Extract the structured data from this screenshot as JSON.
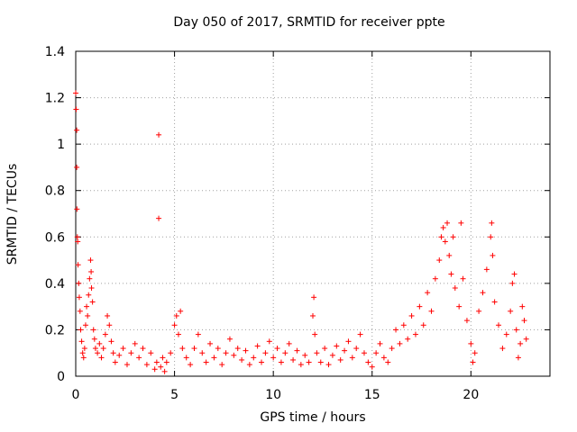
{
  "chart_data": {
    "type": "scatter",
    "title": "Day 050 of 2017, SRMTID for receiver ppte",
    "xlabel": "GPS time / hours",
    "ylabel": "SRMTID / TECUs",
    "xlim": [
      0,
      24
    ],
    "ylim": [
      0,
      1.4
    ],
    "x_ticks": [
      0,
      5,
      10,
      15,
      20
    ],
    "x_tick_labels": [
      "0",
      "5",
      "10",
      "15",
      "20"
    ],
    "y_ticks": [
      0,
      0.2,
      0.4,
      0.6,
      0.8,
      1.0,
      1.2,
      1.4
    ],
    "y_tick_labels": [
      "0",
      "0.2",
      "0.4",
      "0.6",
      "0.8",
      "1",
      "1.2",
      "1.4"
    ],
    "grid": true,
    "marker": "+",
    "color": "#ff0000",
    "series": [
      {
        "name": "SRMTID",
        "points": [
          [
            0.0,
            1.22
          ],
          [
            0.02,
            1.15
          ],
          [
            0.05,
            1.06
          ],
          [
            0.05,
            0.9
          ],
          [
            0.06,
            0.72
          ],
          [
            0.08,
            0.6
          ],
          [
            0.1,
            0.58
          ],
          [
            0.12,
            0.48
          ],
          [
            0.15,
            0.4
          ],
          [
            0.18,
            0.34
          ],
          [
            0.22,
            0.28
          ],
          [
            0.25,
            0.2
          ],
          [
            0.3,
            0.15
          ],
          [
            0.35,
            0.1
          ],
          [
            0.4,
            0.08
          ],
          [
            0.45,
            0.12
          ],
          [
            0.5,
            0.22
          ],
          [
            0.55,
            0.3
          ],
          [
            0.6,
            0.26
          ],
          [
            0.65,
            0.35
          ],
          [
            0.7,
            0.42
          ],
          [
            0.75,
            0.5
          ],
          [
            0.78,
            0.45
          ],
          [
            0.8,
            0.38
          ],
          [
            0.85,
            0.32
          ],
          [
            0.9,
            0.2
          ],
          [
            0.95,
            0.16
          ],
          [
            1.0,
            0.12
          ],
          [
            1.1,
            0.1
          ],
          [
            1.2,
            0.14
          ],
          [
            1.3,
            0.08
          ],
          [
            1.4,
            0.12
          ],
          [
            1.5,
            0.18
          ],
          [
            1.6,
            0.26
          ],
          [
            1.7,
            0.22
          ],
          [
            1.8,
            0.15
          ],
          [
            1.9,
            0.1
          ],
          [
            2.0,
            0.06
          ],
          [
            2.2,
            0.09
          ],
          [
            2.4,
            0.12
          ],
          [
            2.6,
            0.05
          ],
          [
            2.8,
            0.1
          ],
          [
            3.0,
            0.14
          ],
          [
            3.2,
            0.08
          ],
          [
            3.4,
            0.12
          ],
          [
            3.6,
            0.05
          ],
          [
            3.8,
            0.1
          ],
          [
            4.0,
            0.03
          ],
          [
            4.1,
            0.06
          ],
          [
            4.2,
            1.04
          ],
          [
            4.2,
            0.68
          ],
          [
            4.3,
            0.04
          ],
          [
            4.4,
            0.08
          ],
          [
            4.5,
            0.02
          ],
          [
            4.6,
            0.06
          ],
          [
            4.8,
            0.1
          ],
          [
            5.0,
            0.22
          ],
          [
            5.1,
            0.26
          ],
          [
            5.2,
            0.18
          ],
          [
            5.3,
            0.28
          ],
          [
            5.4,
            0.12
          ],
          [
            5.6,
            0.08
          ],
          [
            5.8,
            0.05
          ],
          [
            6.0,
            0.12
          ],
          [
            6.2,
            0.18
          ],
          [
            6.4,
            0.1
          ],
          [
            6.6,
            0.06
          ],
          [
            6.8,
            0.14
          ],
          [
            7.0,
            0.08
          ],
          [
            7.2,
            0.12
          ],
          [
            7.4,
            0.05
          ],
          [
            7.6,
            0.1
          ],
          [
            7.8,
            0.16
          ],
          [
            8.0,
            0.09
          ],
          [
            8.2,
            0.12
          ],
          [
            8.4,
            0.07
          ],
          [
            8.6,
            0.11
          ],
          [
            8.8,
            0.05
          ],
          [
            9.0,
            0.08
          ],
          [
            9.2,
            0.13
          ],
          [
            9.4,
            0.06
          ],
          [
            9.6,
            0.1
          ],
          [
            9.8,
            0.15
          ],
          [
            10.0,
            0.08
          ],
          [
            10.2,
            0.12
          ],
          [
            10.4,
            0.06
          ],
          [
            10.6,
            0.1
          ],
          [
            10.8,
            0.14
          ],
          [
            11.0,
            0.07
          ],
          [
            11.2,
            0.11
          ],
          [
            11.4,
            0.05
          ],
          [
            11.6,
            0.09
          ],
          [
            11.8,
            0.06
          ],
          [
            12.0,
            0.26
          ],
          [
            12.05,
            0.34
          ],
          [
            12.1,
            0.18
          ],
          [
            12.2,
            0.1
          ],
          [
            12.4,
            0.06
          ],
          [
            12.6,
            0.12
          ],
          [
            12.8,
            0.05
          ],
          [
            13.0,
            0.09
          ],
          [
            13.2,
            0.13
          ],
          [
            13.4,
            0.07
          ],
          [
            13.6,
            0.11
          ],
          [
            13.8,
            0.15
          ],
          [
            14.0,
            0.08
          ],
          [
            14.2,
            0.12
          ],
          [
            14.4,
            0.18
          ],
          [
            14.6,
            0.1
          ],
          [
            14.8,
            0.06
          ],
          [
            15.0,
            0.04
          ],
          [
            15.2,
            0.1
          ],
          [
            15.4,
            0.14
          ],
          [
            15.6,
            0.08
          ],
          [
            15.8,
            0.06
          ],
          [
            16.0,
            0.12
          ],
          [
            16.2,
            0.2
          ],
          [
            16.4,
            0.14
          ],
          [
            16.6,
            0.22
          ],
          [
            16.8,
            0.16
          ],
          [
            17.0,
            0.26
          ],
          [
            17.2,
            0.18
          ],
          [
            17.4,
            0.3
          ],
          [
            17.6,
            0.22
          ],
          [
            17.8,
            0.36
          ],
          [
            18.0,
            0.28
          ],
          [
            18.2,
            0.42
          ],
          [
            18.4,
            0.5
          ],
          [
            18.5,
            0.6
          ],
          [
            18.6,
            0.64
          ],
          [
            18.7,
            0.58
          ],
          [
            18.8,
            0.66
          ],
          [
            18.9,
            0.52
          ],
          [
            19.0,
            0.44
          ],
          [
            19.1,
            0.6
          ],
          [
            19.2,
            0.38
          ],
          [
            19.4,
            0.3
          ],
          [
            19.5,
            0.66
          ],
          [
            19.6,
            0.42
          ],
          [
            19.8,
            0.24
          ],
          [
            20.0,
            0.14
          ],
          [
            20.1,
            0.06
          ],
          [
            20.2,
            0.1
          ],
          [
            20.4,
            0.28
          ],
          [
            20.6,
            0.36
          ],
          [
            20.8,
            0.46
          ],
          [
            21.0,
            0.6
          ],
          [
            21.05,
            0.66
          ],
          [
            21.1,
            0.52
          ],
          [
            21.2,
            0.32
          ],
          [
            21.4,
            0.22
          ],
          [
            21.6,
            0.12
          ],
          [
            21.8,
            0.18
          ],
          [
            22.0,
            0.28
          ],
          [
            22.1,
            0.4
          ],
          [
            22.2,
            0.44
          ],
          [
            22.3,
            0.2
          ],
          [
            22.4,
            0.08
          ],
          [
            22.5,
            0.14
          ],
          [
            22.6,
            0.3
          ],
          [
            22.7,
            0.24
          ],
          [
            22.8,
            0.16
          ]
        ]
      }
    ]
  }
}
